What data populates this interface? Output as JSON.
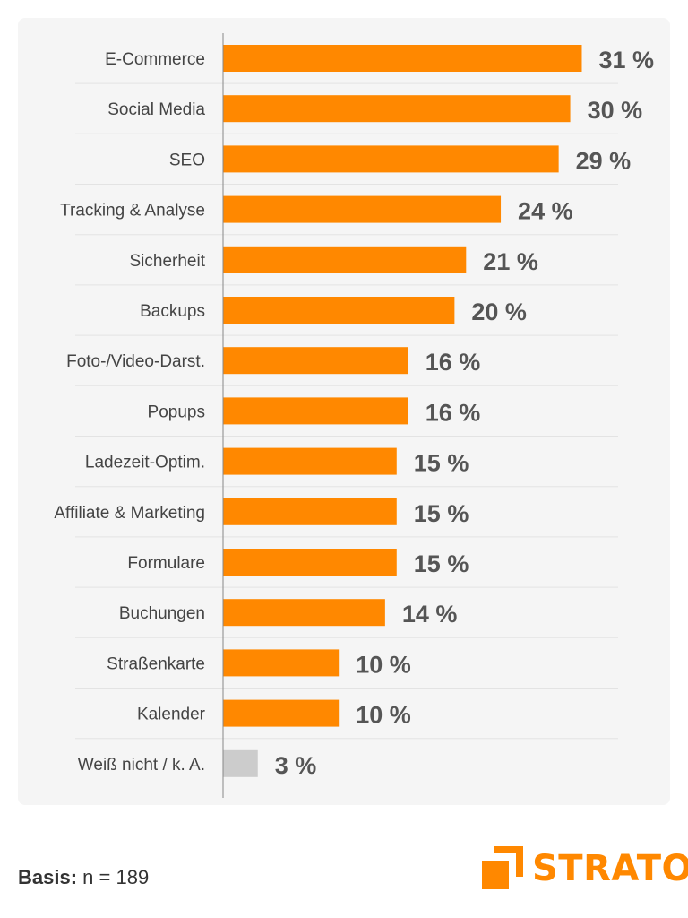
{
  "chart_data": {
    "type": "bar",
    "orientation": "horizontal",
    "categories": [
      "E-Commerce",
      "Social Media",
      "SEO",
      "Tracking & Analyse",
      "Sicherheit",
      "Backups",
      "Foto-/Video-Darst.",
      "Popups",
      "Ladezeit-Optim.",
      "Affiliate & Marketing",
      "Formulare",
      "Buchungen",
      "Straßenkarte",
      "Kalender",
      "Weiß nicht / k. A."
    ],
    "values": [
      31,
      30,
      29,
      24,
      21,
      20,
      16,
      16,
      15,
      15,
      15,
      14,
      10,
      10,
      3
    ],
    "value_labels": [
      "31 %",
      "30 %",
      "29 %",
      "24 %",
      "21 %",
      "20 %",
      "16 %",
      "16 %",
      "15 %",
      "15 %",
      "15 %",
      "14 %",
      "10 %",
      "10 %",
      "3 %"
    ],
    "unit": "%",
    "xlim": [
      0,
      37
    ],
    "grid": false,
    "colors": {
      "bar": "#ff8800",
      "bar_muted": "#cccccc",
      "label": "#444444",
      "value_label": "#555555",
      "axis": "#888888",
      "separator": "#e3e3e3"
    },
    "muted_categories": [
      "Weiß nicht / k. A."
    ]
  },
  "footer": {
    "basis_label": "Basis:",
    "basis_value": "n = 189"
  },
  "brand": {
    "name": "STRATO",
    "color": "#ff8800",
    "logo_icon": "strato-logo-icon"
  }
}
